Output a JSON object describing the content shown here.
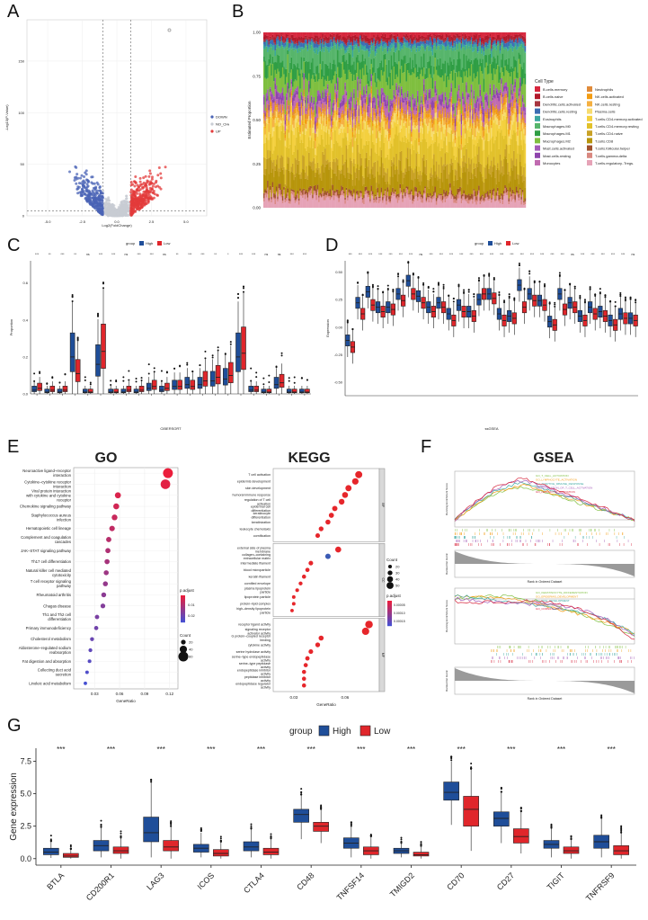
{
  "panels": {
    "A": {
      "label": "A"
    },
    "B": {
      "label": "B"
    },
    "C": {
      "label": "C"
    },
    "D": {
      "label": "D"
    },
    "E": {
      "label": "E"
    },
    "F": {
      "label": "F"
    },
    "G": {
      "label": "G"
    }
  },
  "colors": {
    "high": "#1f4e99",
    "low": "#e0262b",
    "down": "#4a63b5",
    "up": "#e33b3b",
    "nochange": "#c8ccd3"
  },
  "chart_data": [
    {
      "id": "A",
      "type": "scatter",
      "xlabel": "Log2(FoldChange)",
      "ylabel": "-Log10(P-Value)",
      "legend": [
        "DOWN",
        "NO_CHANGE",
        "UP"
      ],
      "xticks": [
        "-5.0",
        "-2.5",
        "0.0",
        "2.5",
        "5.0"
      ],
      "yticks": [
        "0",
        "50",
        "100",
        "150"
      ]
    },
    {
      "id": "B",
      "type": "bar",
      "ylabel": "Estimated Proportion",
      "yticks": [
        "0.00",
        "0.25",
        "0.50",
        "0.75",
        "1.00"
      ],
      "legend_title": "Cell Type",
      "legend_left": [
        {
          "name": "B.cells.memory",
          "color": "#d7263d"
        },
        {
          "name": "B.cells.naive",
          "color": "#b2182b"
        },
        {
          "name": "Dendritic.cells.activated",
          "color": "#a6343f"
        },
        {
          "name": "Dendritic.cells.resting",
          "color": "#3b6db3"
        },
        {
          "name": "Eosinophils",
          "color": "#3aa6a0"
        },
        {
          "name": "Macrophages.M0",
          "color": "#56b56b"
        },
        {
          "name": "Macrophages.M1",
          "color": "#2f9e44"
        },
        {
          "name": "Macrophages.M2",
          "color": "#7fbf3f"
        },
        {
          "name": "Mast.cells.activated",
          "color": "#a35ab8"
        },
        {
          "name": "Mast.cells.resting",
          "color": "#8e44ad"
        },
        {
          "name": "Monocytes",
          "color": "#c06ab0"
        }
      ],
      "legend_right": [
        {
          "name": "Neutrophils",
          "color": "#e08b3a"
        },
        {
          "name": "NK.cells.activated",
          "color": "#f39c12"
        },
        {
          "name": "NK.cells.resting",
          "color": "#f5b041"
        },
        {
          "name": "Plasma.cells",
          "color": "#f7dc6f"
        },
        {
          "name": "T.cells.CD4.memory.activated",
          "color": "#f4d03f"
        },
        {
          "name": "T.cells.CD4.memory.resting",
          "color": "#e2c12a"
        },
        {
          "name": "T.cells.CD4.naive",
          "color": "#c9a227"
        },
        {
          "name": "T.cells.CD8",
          "color": "#b7950b"
        },
        {
          "name": "T.cells.follicular.helper",
          "color": "#a0522d"
        },
        {
          "name": "T.cells.gamma.delta",
          "color": "#d98880"
        },
        {
          "name": "T.cells.regulatory..Tregs.",
          "color": "#e6a3b7"
        }
      ]
    },
    {
      "id": "C",
      "type": "bar",
      "legend_title": "group",
      "groups": [
        "High",
        "Low"
      ],
      "ylabel": "Proportion",
      "xlabel": "CIBERSORT",
      "yticks": [
        "0.0",
        "0.2",
        "0.4",
        "0.6"
      ],
      "sig": [
        "***",
        "**",
        "***",
        "**",
        "ns",
        "***",
        "***",
        "ns",
        "***",
        "***",
        "ns",
        "**",
        "***",
        "***",
        "**",
        "*",
        "***",
        "***",
        "ns",
        "ns",
        "***",
        "***"
      ],
      "medians_high": [
        0.02,
        0.01,
        0.01,
        0.2,
        0.01,
        0.16,
        0.01,
        0.01,
        0.01,
        0.03,
        0.02,
        0.04,
        0.05,
        0.05,
        0.07,
        0.08,
        0.2,
        0.02,
        0.01,
        0.05,
        0.01,
        0.01
      ],
      "medians_low": [
        0.03,
        0.02,
        0.02,
        0.11,
        0.01,
        0.23,
        0.01,
        0.02,
        0.02,
        0.04,
        0.03,
        0.04,
        0.04,
        0.07,
        0.09,
        0.1,
        0.22,
        0.02,
        0.01,
        0.06,
        0.01,
        0.01
      ]
    },
    {
      "id": "D",
      "type": "bar",
      "legend_title": "group",
      "groups": [
        "High",
        "Low"
      ],
      "ylabel": "Expression",
      "xlabel": "ssGSEA",
      "yticks": [
        "-0.50",
        "-0.25",
        "0.00",
        "0.25",
        "0.50"
      ],
      "sig": [
        "***",
        "***",
        "***",
        "***",
        "***",
        "***",
        "***",
        "ns",
        "***",
        "***",
        "***",
        "***",
        "***",
        "***",
        "***",
        "***",
        "***",
        "***",
        "***",
        "***",
        "***",
        "***",
        "ns",
        "***",
        "***",
        "***",
        "***",
        "***",
        "ns"
      ],
      "medians_high": [
        -0.12,
        0.22,
        0.32,
        0.18,
        0.18,
        0.3,
        0.42,
        0.28,
        0.18,
        0.22,
        0.12,
        0.2,
        0.14,
        0.25,
        0.3,
        0.12,
        0.1,
        0.38,
        0.3,
        0.24,
        0.05,
        0.3,
        0.22,
        0.1,
        0.18,
        0.14,
        0.06,
        0.12,
        0.08
      ],
      "medians_low": [
        -0.18,
        0.12,
        0.2,
        0.14,
        0.16,
        0.24,
        0.3,
        0.22,
        0.14,
        0.18,
        0.06,
        0.14,
        0.1,
        0.3,
        0.26,
        0.06,
        0.08,
        0.18,
        0.24,
        0.2,
        0.02,
        0.16,
        0.18,
        0.06,
        0.12,
        0.1,
        0.02,
        0.08,
        0.06
      ]
    },
    {
      "id": "E-GO",
      "type": "scatter",
      "title": "GO",
      "xlabel": "GeneRatio",
      "xticks": [
        "0.03",
        "0.06",
        "0.09",
        "0.12"
      ],
      "legend_padj_title": "p.adjust",
      "legend_padj_ticks": [
        "0.01",
        "0.02"
      ],
      "legend_count_title": "Count",
      "legend_count_ticks": [
        "20",
        "40",
        "60"
      ],
      "terms": [
        "Neuroactive ligand–receptor interaction",
        "Cytokine–cytokine receptor interaction",
        "Viral protein interaction with cytokine and cytokine receptor",
        "Chemokine signaling pathway",
        "Staphylococcus aureus infection",
        "Hematopoietic cell lineage",
        "Complement and coagulation cascades",
        "JAK–STAT signaling pathway",
        "Th17 cell differentiation",
        "Natural killer cell mediated cytotoxicity",
        "T cell receptor signaling pathway",
        "Rheumatoid arthritis",
        "Chagas disease",
        "Th1 and Th2 cell differentiation",
        "Primary immunodeficiency",
        "Cholesterol metabolism",
        "Aldosterone–regulated sodium reabsorption",
        "Fat digestion and absorption",
        "Collecting duct acid secretion",
        "Linoleic acid metabolism"
      ],
      "gene_ratio": [
        0.118,
        0.115,
        0.058,
        0.056,
        0.054,
        0.051,
        0.047,
        0.046,
        0.045,
        0.044,
        0.043,
        0.041,
        0.04,
        0.033,
        0.032,
        0.027,
        0.025,
        0.024,
        0.021,
        0.019
      ],
      "count": [
        60,
        58,
        30,
        29,
        28,
        26,
        24,
        23,
        23,
        22,
        22,
        21,
        20,
        17,
        16,
        14,
        13,
        12,
        11,
        10
      ]
    },
    {
      "id": "E-KEGG",
      "type": "scatter",
      "title": "KEGG",
      "xlabel": "GeneRatio",
      "xticks": [
        "0.03",
        "0.06"
      ],
      "legend_count_title": "Count",
      "legend_count_ticks": [
        "20",
        "30",
        "40",
        "50"
      ],
      "legend_padj_title": "p.adjust",
      "legend_padj_ticks": [
        "0.00005",
        "0.00010",
        "0.00015"
      ],
      "terms": [
        "T cell activation",
        "epidermis development",
        "skin development",
        "humoral immune response",
        "regulation of T cell activation",
        "epidermal cell differentiation",
        "keratinocyte differentiation",
        "keratinization",
        "leukocyte chemotaxis",
        "cornification",
        "external side of plasma membrane",
        "collagen–containing extracellular matrix",
        "intermediate filament",
        "blood microparticle",
        "keratin filament",
        "cornified envelope",
        "plasma lipoprotein particle",
        "lipoprotein particle",
        "protein–lipid complex",
        "high–density lipoprotein particle",
        "receptor ligand activity",
        "signaling receptor activator activity",
        "G protein–coupled receptor binding",
        "cytokine activity",
        "serine hydrolase activity",
        "serine–type endopeptidase activity",
        "serine–type peptidase activity",
        "endopeptidase inhibitor activity",
        "peptidase inhibitor activity",
        "endopeptidase regulator activity"
      ],
      "facets": [
        "BP",
        "CC",
        "MF"
      ],
      "gene_ratio": [
        0.068,
        0.066,
        0.062,
        0.06,
        0.058,
        0.054,
        0.052,
        0.05,
        0.046,
        0.044,
        0.056,
        0.05,
        0.04,
        0.038,
        0.036,
        0.034,
        0.032,
        0.03,
        0.03,
        0.029,
        0.074,
        0.072,
        0.046,
        0.044,
        0.04,
        0.038,
        0.037,
        0.036,
        0.036,
        0.036
      ],
      "count": [
        50,
        45,
        42,
        40,
        38,
        35,
        33,
        32,
        30,
        28,
        40,
        35,
        28,
        25,
        24,
        22,
        20,
        19,
        19,
        18,
        55,
        52,
        32,
        30,
        28,
        26,
        25,
        24,
        24,
        24
      ]
    },
    {
      "id": "F",
      "type": "line",
      "title": "GSEA",
      "xlabel": "Rank in Ordered Dataset",
      "ylabel_top": "Running Enrichment Score",
      "ylabel_bottom": "Ranked list metric",
      "top_series": [
        {
          "name": "GO_T_CELL_ACTIVATION",
          "color": "#7fbf3f"
        },
        {
          "name": "GO_LYMPHOCYTE_ACTIVATION",
          "color": "#f39c12"
        },
        {
          "name": "GO_ADAPTIVE_IMMUNE_RESPONSE",
          "color": "#3aa6a0"
        },
        {
          "name": "GO_REGULATION_OF_T_CELL_ACTIVATION",
          "color": "#a35ab8"
        },
        {
          "name": "GO_LEUKOCYTE_ACTIVATION",
          "color": "#d7263d"
        }
      ],
      "bottom_series": [
        {
          "name": "GO_KERATINOCYTE_DIFFERENTIATION",
          "color": "#7fbf3f"
        },
        {
          "name": "GO_EPIDERMIS_DEVELOPMENT",
          "color": "#f39c12"
        },
        {
          "name": "GO_SKIN_DEVELOPMENT",
          "color": "#3aa6a0"
        },
        {
          "name": "GO_KERATINIZATION",
          "color": "#a35ab8"
        },
        {
          "name": "GO_CORNIFICATION",
          "color": "#d7263d"
        }
      ]
    },
    {
      "id": "G",
      "type": "bar",
      "legend_title": "group",
      "groups": [
        "High",
        "Low"
      ],
      "ylabel": "Gene expression",
      "yticks": [
        "0.0",
        "2.5",
        "5.0",
        "7.5"
      ],
      "ylim": [
        0,
        9
      ],
      "categories": [
        "BTLA",
        "CD200R1",
        "LAG3",
        "ICOS",
        "CTLA4",
        "CD48",
        "TNFSF14",
        "TMIGD2",
        "CD70",
        "CD27",
        "TIGIT",
        "TNFRSF9"
      ],
      "sig": [
        "***",
        "***",
        "***",
        "***",
        "***",
        "***",
        "***",
        "***",
        "***",
        "***",
        "***",
        "***"
      ],
      "high": [
        {
          "q1": 0.3,
          "med": 0.5,
          "q3": 0.8,
          "lo": 0.05,
          "hi": 1.3
        },
        {
          "q1": 0.6,
          "med": 1.0,
          "q3": 1.4,
          "lo": 0.1,
          "hi": 2.4
        },
        {
          "q1": 1.3,
          "med": 2.0,
          "q3": 3.2,
          "lo": 0.1,
          "hi": 5.9
        },
        {
          "q1": 0.5,
          "med": 0.8,
          "q3": 1.1,
          "lo": 0.1,
          "hi": 2.0
        },
        {
          "q1": 0.6,
          "med": 0.9,
          "q3": 1.3,
          "lo": 0.1,
          "hi": 2.3
        },
        {
          "q1": 2.8,
          "med": 3.4,
          "q3": 3.8,
          "lo": 1.5,
          "hi": 4.9
        },
        {
          "q1": 0.8,
          "med": 1.2,
          "q3": 1.6,
          "lo": 0.1,
          "hi": 2.5
        },
        {
          "q1": 0.4,
          "med": 0.6,
          "q3": 0.8,
          "lo": 0.1,
          "hi": 1.2
        },
        {
          "q1": 4.5,
          "med": 5.1,
          "q3": 5.9,
          "lo": 2.6,
          "hi": 7.5
        },
        {
          "q1": 2.5,
          "med": 3.1,
          "q3": 3.6,
          "lo": 1.2,
          "hi": 5.1
        },
        {
          "q1": 0.8,
          "med": 1.1,
          "q3": 1.4,
          "lo": 0.1,
          "hi": 2.3
        },
        {
          "q1": 0.8,
          "med": 1.3,
          "q3": 1.8,
          "lo": 0.1,
          "hi": 3.1
        }
      ],
      "low": [
        {
          "q1": 0.1,
          "med": 0.2,
          "q3": 0.4,
          "lo": 0.0,
          "hi": 0.7
        },
        {
          "q1": 0.4,
          "med": 0.6,
          "q3": 0.9,
          "lo": 0.0,
          "hi": 1.6
        },
        {
          "q1": 0.6,
          "med": 0.9,
          "q3": 1.4,
          "lo": 0.0,
          "hi": 2.5
        },
        {
          "q1": 0.2,
          "med": 0.4,
          "q3": 0.7,
          "lo": 0.0,
          "hi": 1.3
        },
        {
          "q1": 0.3,
          "med": 0.5,
          "q3": 0.8,
          "lo": 0.0,
          "hi": 1.5
        },
        {
          "q1": 2.1,
          "med": 2.5,
          "q3": 2.8,
          "lo": 1.2,
          "hi": 3.8
        },
        {
          "q1": 0.3,
          "med": 0.6,
          "q3": 0.9,
          "lo": 0.0,
          "hi": 1.7
        },
        {
          "q1": 0.2,
          "med": 0.3,
          "q3": 0.5,
          "lo": 0.0,
          "hi": 0.9
        },
        {
          "q1": 2.5,
          "med": 3.8,
          "q3": 4.8,
          "lo": 0.6,
          "hi": 6.9
        },
        {
          "q1": 1.2,
          "med": 1.7,
          "q3": 2.3,
          "lo": 0.4,
          "hi": 3.6
        },
        {
          "q1": 0.4,
          "med": 0.6,
          "q3": 0.9,
          "lo": 0.0,
          "hi": 1.5
        },
        {
          "q1": 0.3,
          "med": 0.6,
          "q3": 1.0,
          "lo": 0.0,
          "hi": 2.0
        }
      ]
    }
  ]
}
